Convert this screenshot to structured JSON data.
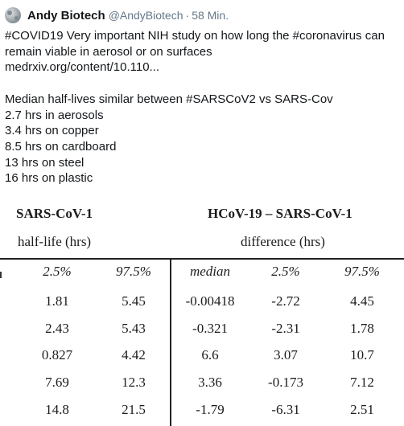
{
  "tweet": {
    "author_name": "Andy Biotech",
    "handle": "@AndyBiotech",
    "separator": "·",
    "time": "58 Min.",
    "lines": [
      "#COVID19 Very important NIH study on how long the #coronavirus can",
      "remain viable in aerosol or on surfaces",
      "medrxiv.org/content/10.110...",
      "",
      "Median half-lives similar between #SARSCoV2 vs SARS-Cov",
      "2.7 hrs in aerosols",
      "3.4 hrs on copper",
      "8.5 hrs on cardboard",
      "13 hrs on steel",
      "16 hrs on plastic"
    ]
  },
  "table": {
    "group_a_title": "SARS-CoV-1",
    "group_a_subtitle": "half-life (hrs)",
    "group_b_title": "HCoV-19 – SARS-CoV-1",
    "group_b_subtitle": "difference (hrs)",
    "columns": [
      "2.5%",
      "97.5%",
      "median",
      "2.5%",
      "97.5%"
    ],
    "rows": [
      [
        "1.81",
        "5.45",
        "-0.00418",
        "-2.72",
        "4.45"
      ],
      [
        "2.43",
        "5.43",
        "-0.321",
        "-2.31",
        "1.78"
      ],
      [
        "0.827",
        "4.42",
        "6.6",
        "3.07",
        "10.7"
      ],
      [
        "7.69",
        "12.3",
        "3.36",
        "-0.173",
        "7.12"
      ],
      [
        "14.8",
        "21.5",
        "-1.79",
        "-6.31",
        "2.51"
      ]
    ]
  }
}
